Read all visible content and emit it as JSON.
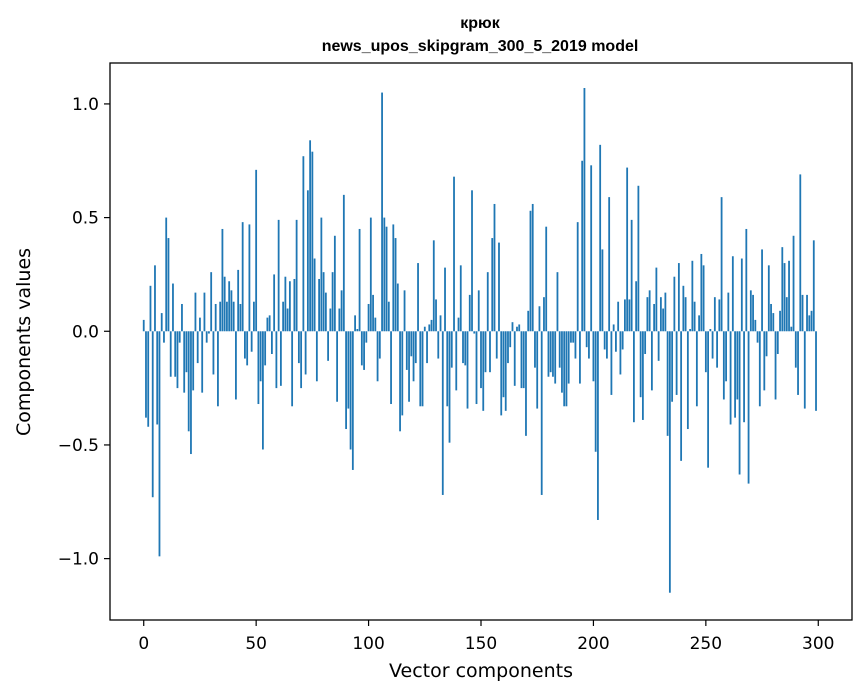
{
  "chart_data": {
    "type": "bar",
    "title": "крюк",
    "subtitle": "news_upos_skipgram_300_5_2019 model",
    "xlabel": "Vector components",
    "ylabel": "Components values",
    "xlim": [
      -15,
      315
    ],
    "ylim": [
      -1.27,
      1.18
    ],
    "xticks": [
      0,
      50,
      100,
      150,
      200,
      250,
      300
    ],
    "xtick_labels": [
      "0",
      "50",
      "100",
      "150",
      "200",
      "250",
      "300"
    ],
    "yticks": [
      -1.0,
      -0.5,
      0.0,
      0.5,
      1.0
    ],
    "ytick_labels": [
      "−1.0",
      "−0.5",
      "0.0",
      "0.5",
      "1.0"
    ],
    "grid": false,
    "bar_color": "#1f77b4",
    "values": [
      0.05,
      -0.38,
      -0.42,
      0.2,
      -0.73,
      0.29,
      -0.41,
      -0.99,
      0.08,
      -0.05,
      0.5,
      0.41,
      -0.2,
      0.21,
      -0.2,
      -0.25,
      -0.05,
      0.12,
      -0.27,
      -0.18,
      -0.44,
      -0.54,
      -0.26,
      0.17,
      -0.14,
      0.06,
      -0.27,
      0.17,
      -0.05,
      -0.01,
      0.26,
      -0.19,
      0.12,
      -0.33,
      0.13,
      0.45,
      0.24,
      0.13,
      0.22,
      0.18,
      0.13,
      -0.3,
      0.27,
      0.12,
      0.48,
      -0.12,
      -0.15,
      0.47,
      -0.09,
      0.13,
      0.71,
      -0.32,
      -0.22,
      -0.52,
      -0.15,
      0.06,
      0.07,
      -0.1,
      0.25,
      -0.25,
      0.49,
      -0.24,
      0.13,
      0.24,
      0.1,
      0.22,
      -0.33,
      0.23,
      0.49,
      -0.14,
      -0.25,
      0.77,
      -0.19,
      0.62,
      0.84,
      0.79,
      0.32,
      -0.22,
      0.23,
      0.5,
      0.26,
      0.17,
      -0.13,
      0.1,
      0.26,
      0.42,
      -0.31,
      0.1,
      0.18,
      0.6,
      -0.43,
      -0.34,
      -0.52,
      -0.61,
      0.07,
      0.01,
      0.45,
      -0.15,
      -0.17,
      -0.05,
      0.12,
      0.5,
      0.16,
      0.06,
      -0.22,
      -0.12,
      1.05,
      0.5,
      0.46,
      0.13,
      -0.32,
      0.47,
      0.41,
      0.21,
      -0.44,
      -0.37,
      0.18,
      -0.17,
      -0.31,
      -0.11,
      -0.22,
      -0.14,
      0.3,
      -0.33,
      -0.33,
      0.02,
      -0.14,
      0.03,
      0.05,
      0.4,
      0.14,
      -0.12,
      0.07,
      -0.72,
      0.28,
      -0.33,
      -0.49,
      -0.16,
      0.68,
      -0.26,
      0.06,
      0.29,
      -0.14,
      -0.15,
      -0.34,
      0.16,
      0.62,
      -0.01,
      -0.32,
      0.18,
      -0.25,
      -0.35,
      -0.18,
      0.26,
      -0.18,
      0.41,
      0.56,
      -0.12,
      0.39,
      -0.37,
      -0.29,
      -0.35,
      -0.14,
      -0.07,
      0.04,
      -0.24,
      0.02,
      0.03,
      -0.25,
      -0.25,
      -0.46,
      0.09,
      0.53,
      0.56,
      -0.16,
      -0.34,
      0.11,
      -0.72,
      0.15,
      0.46,
      -0.2,
      -0.18,
      -0.2,
      -0.23,
      0.26,
      -0.16,
      -0.27,
      -0.33,
      -0.33,
      -0.23,
      -0.05,
      -0.05,
      -0.12,
      0.48,
      -0.23,
      0.75,
      1.07,
      -0.07,
      -0.12,
      0.73,
      -0.22,
      -0.53,
      -0.83,
      0.82,
      0.36,
      -0.08,
      -0.12,
      0.59,
      -0.28,
      0.03,
      -0.09,
      0.13,
      -0.19,
      -0.08,
      0.14,
      0.72,
      0.14,
      0.49,
      -0.4,
      0.22,
      0.64,
      -0.29,
      -0.39,
      -0.1,
      0.15,
      0.18,
      -0.26,
      0.12,
      0.28,
      -0.13,
      0.15,
      0.1,
      0.17,
      -0.46,
      -1.15,
      -0.31,
      0.24,
      -0.28,
      0.3,
      -0.57,
      0.2,
      0.15,
      -0.43,
      0.01,
      0.31,
      0.13,
      -0.33,
      0.07,
      0.34,
      0.29,
      -0.18,
      -0.6,
      0.01,
      -0.12,
      0.15,
      -0.16,
      0.14,
      0.59,
      -0.3,
      -0.22,
      0.17,
      -0.41,
      0.33,
      -0.38,
      -0.3,
      -0.63,
      0.32,
      -0.4,
      0.45,
      -0.67,
      0.18,
      0.16,
      0.05,
      -0.05,
      -0.33,
      0.36,
      -0.26,
      -0.11,
      0.29,
      0.12,
      0.08,
      -0.3,
      -0.1,
      0.09,
      0.37,
      0.3,
      0.15,
      0.31,
      0.02,
      0.42,
      -0.16,
      -0.28,
      0.69,
      0.16,
      -0.34,
      0.16,
      0.07,
      0.09,
      0.4,
      -0.35
    ]
  }
}
